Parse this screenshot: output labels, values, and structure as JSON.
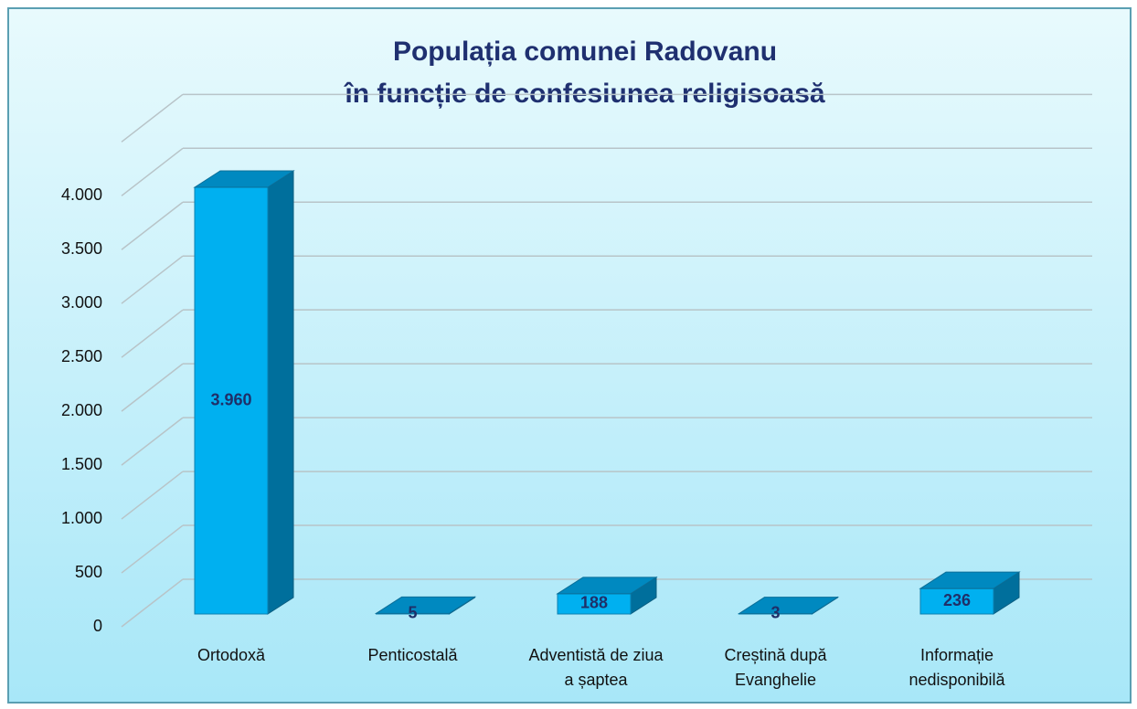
{
  "chart_data": {
    "type": "bar3d",
    "title": [
      "Populația comunei Radovanu",
      "în funcție de confesiunea religisoasă"
    ],
    "categories": [
      "Ortodoxă",
      "Penticostală",
      "Adventistă de ziua a șaptea",
      "Creștină după Evanghelie",
      "Informație nedisponibilă"
    ],
    "values": [
      3960,
      5,
      188,
      3,
      236
    ],
    "value_labels": [
      "3.960",
      "5",
      "188",
      "3",
      "236"
    ],
    "color": "#00b0f0",
    "ylim": [
      0,
      4500
    ],
    "yticks": [
      0,
      500,
      {
        "value": 1000,
        "label": "1.000"
      },
      {
        "value": 1500,
        "label": "1.500"
      },
      {
        "value": 2000,
        "label": "2.000"
      },
      {
        "value": 2500,
        "label": "2.500"
      },
      {
        "value": 3000,
        "label": "3.000"
      },
      {
        "value": 3500,
        "label": "3.500"
      },
      {
        "value": 4000,
        "label": "4.000"
      }
    ],
    "grid": true
  }
}
